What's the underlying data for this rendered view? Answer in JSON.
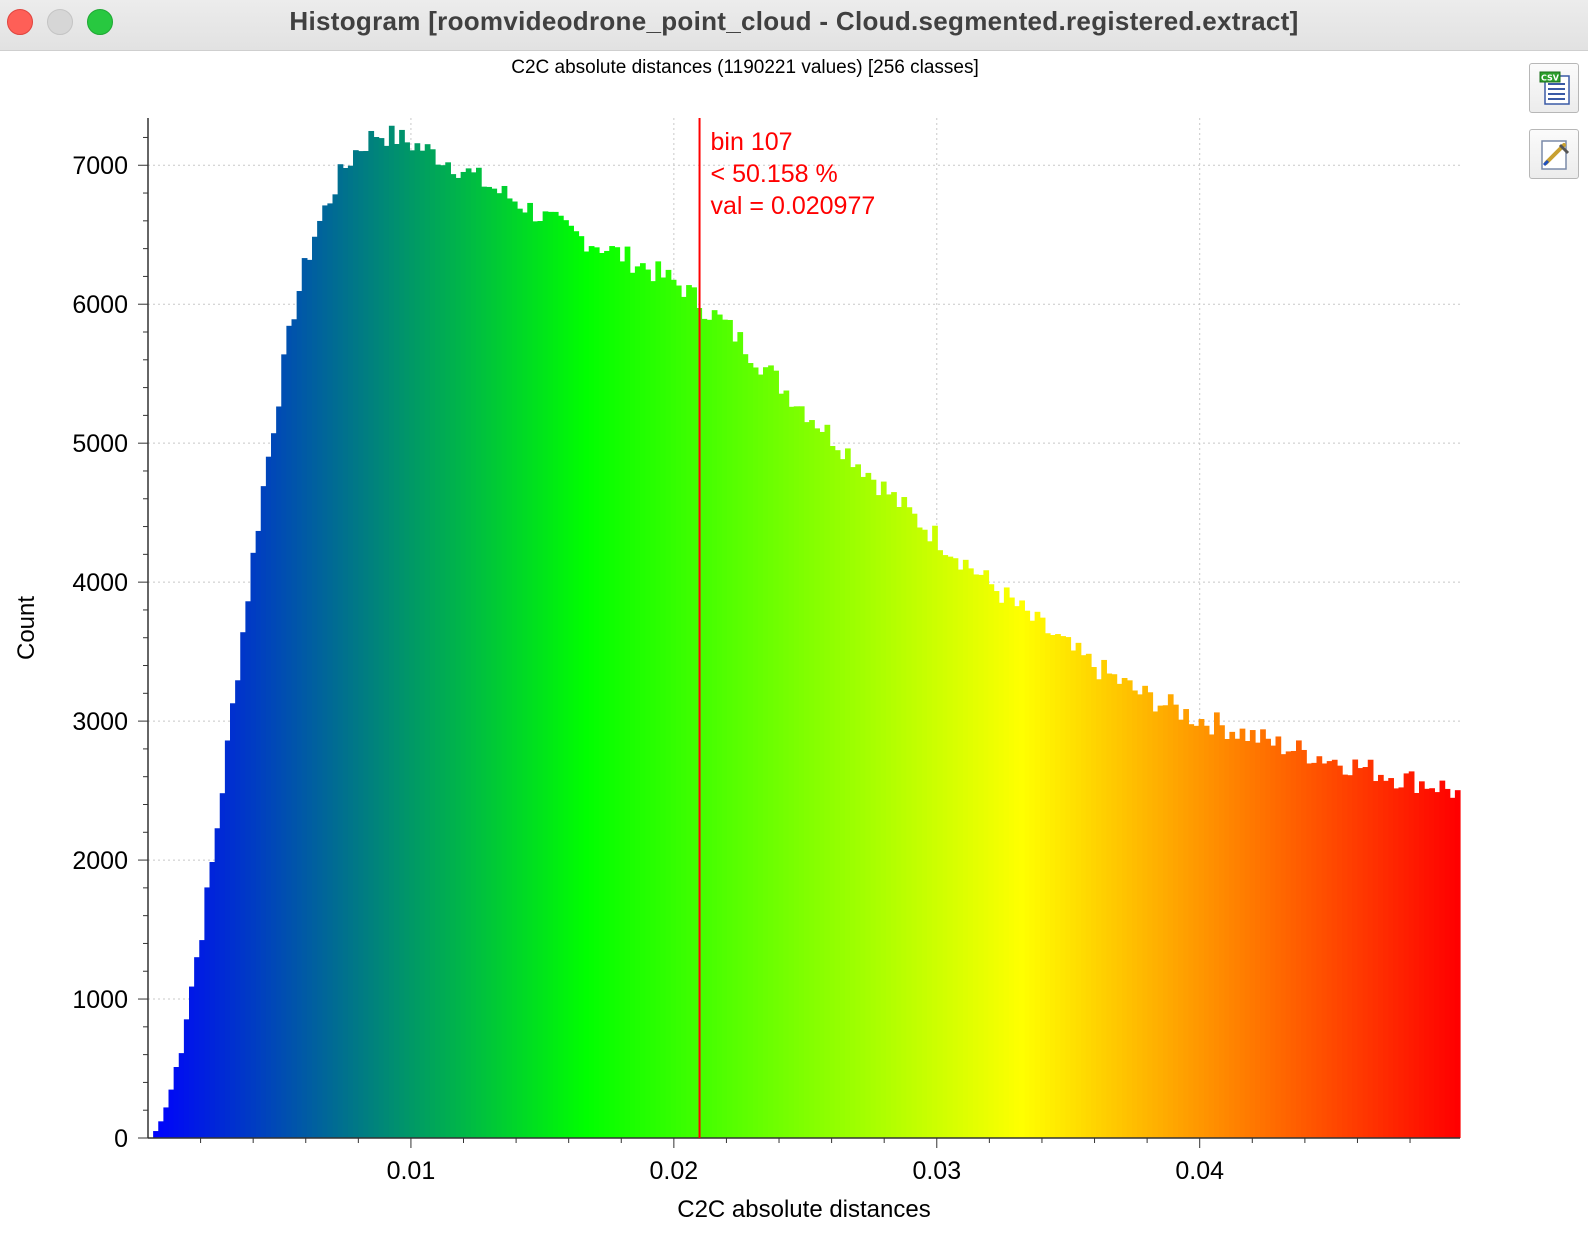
{
  "window": {
    "title": "Histogram [roomvideodrone_point_cloud - Cloud.segmented.registered.extract]"
  },
  "toolbar": {
    "export_csv_icon": "csv-export-icon",
    "export_image_icon": "image-export-icon"
  },
  "chart_data": {
    "type": "bar",
    "title": "C2C absolute distances (1190221 values)  [256 classes]",
    "xlabel": "C2C absolute distances",
    "ylabel": "Count",
    "bins": 256,
    "total_values": 1190221,
    "xlim": [
      0.0,
      0.0499
    ],
    "ylim": [
      0,
      7340
    ],
    "x_ticks": [
      "0.01",
      "0.02",
      "0.03",
      "0.04"
    ],
    "y_ticks": [
      "0",
      "1000",
      "2000",
      "3000",
      "4000",
      "5000",
      "6000",
      "7000"
    ],
    "grid": true,
    "colormap": [
      "#0000ff",
      "#00ff00",
      "#ffff00",
      "#ff0000"
    ],
    "counts_control_points": [
      [
        0,
        0
      ],
      [
        1,
        50
      ],
      [
        2,
        120
      ],
      [
        3,
        220
      ],
      [
        4,
        350
      ],
      [
        5,
        500
      ],
      [
        6,
        680
      ],
      [
        7,
        900
      ],
      [
        8,
        1100
      ],
      [
        10,
        1500
      ],
      [
        12,
        1970
      ],
      [
        14,
        2520
      ],
      [
        16,
        3100
      ],
      [
        18,
        3640
      ],
      [
        20,
        4180
      ],
      [
        22,
        4680
      ],
      [
        24,
        5130
      ],
      [
        26,
        5560
      ],
      [
        28,
        5960
      ],
      [
        30,
        6250
      ],
      [
        32,
        6500
      ],
      [
        34,
        6680
      ],
      [
        36,
        6850
      ],
      [
        38,
        6990
      ],
      [
        40,
        7100
      ],
      [
        44,
        7230
      ],
      [
        48,
        7200
      ],
      [
        52,
        7140
      ],
      [
        56,
        7070
      ],
      [
        60,
        6990
      ],
      [
        64,
        6900
      ],
      [
        68,
        6810
      ],
      [
        72,
        6730
      ],
      [
        76,
        6640
      ],
      [
        80,
        6560
      ],
      [
        84,
        6480
      ],
      [
        88,
        6420
      ],
      [
        92,
        6350
      ],
      [
        96,
        6280
      ],
      [
        100,
        6200
      ],
      [
        104,
        6120
      ],
      [
        106,
        6050
      ],
      [
        108,
        5980
      ],
      [
        112,
        5860
      ],
      [
        116,
        5700
      ],
      [
        120,
        5540
      ],
      [
        124,
        5380
      ],
      [
        128,
        5230
      ],
      [
        132,
        5080
      ],
      [
        136,
        4940
      ],
      [
        140,
        4790
      ],
      [
        144,
        4640
      ],
      [
        148,
        4500
      ],
      [
        152,
        4370
      ],
      [
        156,
        4240
      ],
      [
        160,
        4110
      ],
      [
        164,
        3980
      ],
      [
        168,
        3860
      ],
      [
        172,
        3730
      ],
      [
        176,
        3620
      ],
      [
        180,
        3500
      ],
      [
        184,
        3400
      ],
      [
        188,
        3310
      ],
      [
        192,
        3220
      ],
      [
        196,
        3150
      ],
      [
        200,
        3090
      ],
      [
        204,
        3020
      ],
      [
        208,
        2980
      ],
      [
        212,
        2930
      ],
      [
        216,
        2880
      ],
      [
        220,
        2830
      ],
      [
        224,
        2790
      ],
      [
        228,
        2750
      ],
      [
        232,
        2710
      ],
      [
        236,
        2670
      ],
      [
        240,
        2630
      ],
      [
        244,
        2590
      ],
      [
        248,
        2560
      ],
      [
        252,
        2530
      ],
      [
        255,
        2480
      ]
    ],
    "marker": {
      "bin": 107,
      "value": 0.020977,
      "label_bin": "bin 107",
      "label_percent": "< 50.158 %",
      "label_value": "val = 0.020977",
      "color": "#ff0000"
    }
  }
}
